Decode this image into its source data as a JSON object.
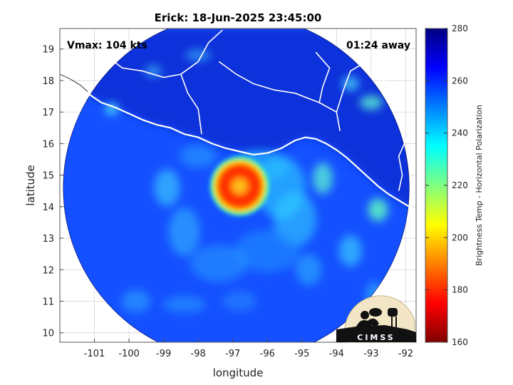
{
  "title": "Erick: 18-Jun-2025 23:45:00",
  "vmax_label": "Vmax: 104 kts",
  "time_offset_label": "01:24 away",
  "axes": {
    "xlabel": "longitude",
    "ylabel": "latitude",
    "xlim": [
      -102.0,
      -91.7
    ],
    "ylim": [
      9.7,
      19.65
    ],
    "xticks": [
      -101,
      -100,
      -99,
      -98,
      -97,
      -96,
      -95,
      -94,
      -93,
      -92
    ],
    "yticks": [
      10,
      11,
      12,
      13,
      14,
      15,
      16,
      17,
      18,
      19
    ],
    "grid": true
  },
  "colorbar": {
    "label": "Brightness Temp - Horizontal Polarization",
    "min": 160,
    "max": 280,
    "ticks": [
      160,
      180,
      200,
      220,
      240,
      260,
      280
    ],
    "colormap": "jet",
    "position": "right"
  },
  "swath": {
    "center_lon": -96.9,
    "center_lat": 14.6,
    "radius_deg": 5.0
  },
  "storm": {
    "name": "Erick",
    "center_lon": -96.8,
    "center_lat": 14.65
  },
  "logo": {
    "text": "CIMSS",
    "position": "bottom-right"
  }
}
